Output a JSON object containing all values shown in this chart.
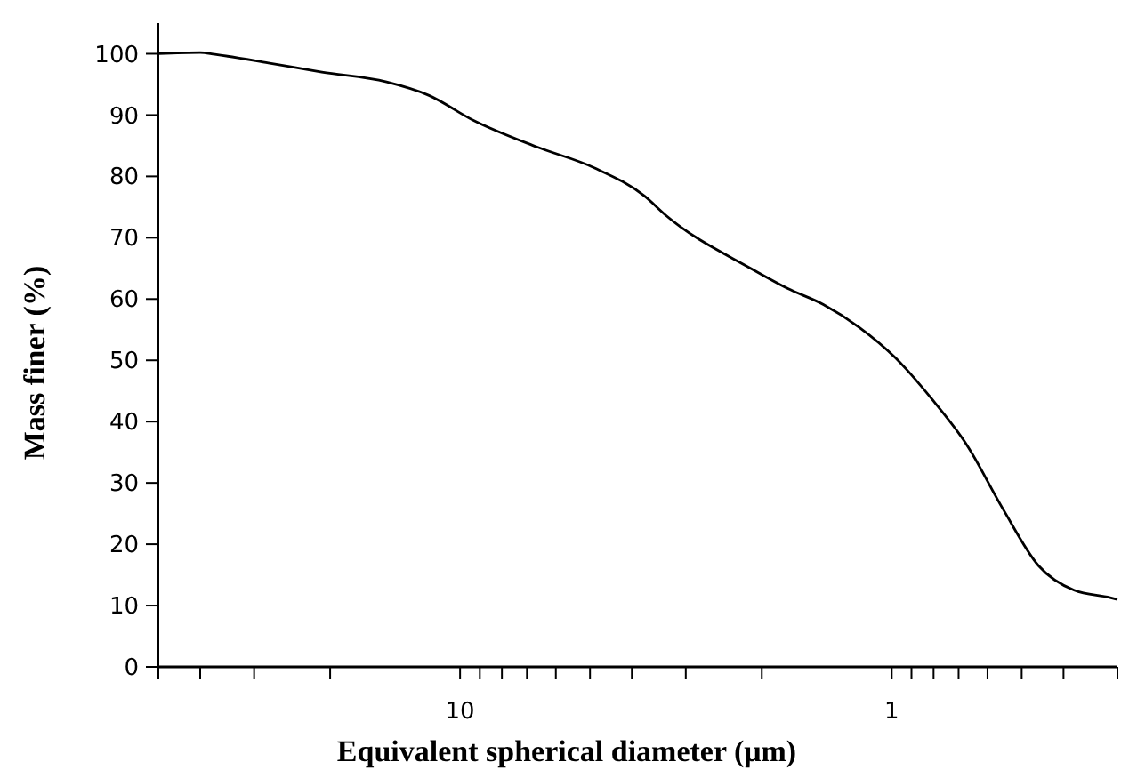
{
  "chart_data": {
    "type": "line",
    "xlabel": "Equivalent spherical diameter (μm)",
    "ylabel": "Mass finer (%)",
    "log": "x",
    "xlim": [
      50,
      0.3
    ],
    "ylim": [
      0,
      105
    ],
    "xticks": [
      {
        "value": 50,
        "label": null
      },
      {
        "value": 40,
        "label": null
      },
      {
        "value": 30,
        "label": null
      },
      {
        "value": 20,
        "label": null
      },
      {
        "value": 10,
        "label": "10"
      },
      {
        "value": 9,
        "label": null
      },
      {
        "value": 8,
        "label": null
      },
      {
        "value": 7,
        "label": null
      },
      {
        "value": 6,
        "label": null
      },
      {
        "value": 5,
        "label": null
      },
      {
        "value": 4,
        "label": null
      },
      {
        "value": 3,
        "label": null
      },
      {
        "value": 2,
        "label": null
      },
      {
        "value": 1,
        "label": "1"
      },
      {
        "value": 0.9,
        "label": null
      },
      {
        "value": 0.8,
        "label": null
      },
      {
        "value": 0.7,
        "label": null
      },
      {
        "value": 0.6,
        "label": null
      },
      {
        "value": 0.5,
        "label": null
      },
      {
        "value": 0.4,
        "label": null
      },
      {
        "value": 0.3,
        "label": null
      }
    ],
    "yticks": [
      0,
      10,
      20,
      30,
      40,
      50,
      60,
      70,
      80,
      90,
      100
    ],
    "grid": false,
    "marker": "none",
    "line_style": "solid",
    "series": [
      {
        "color": "#000000",
        "x": [
          50,
          40,
          37,
          27.8,
          20.9,
          14.8,
          11.8,
          9.35,
          6.64,
          4.89,
          3.74,
          3.33,
          2.11,
          1.74,
          1.44,
          1.19,
          0.98,
          0.81,
          0.67,
          0.553,
          0.457,
          0.378,
          0.312,
          0.3
        ],
        "values": [
          100,
          100.2,
          99.9,
          98.5,
          97,
          95.4,
          93.2,
          89.2,
          84.8,
          81.4,
          76.8,
          73.6,
          64.9,
          61.7,
          59.1,
          55.4,
          50.4,
          43.8,
          36.2,
          25.8,
          16.5,
          12.5,
          11.3,
          11
        ]
      }
    ]
  }
}
